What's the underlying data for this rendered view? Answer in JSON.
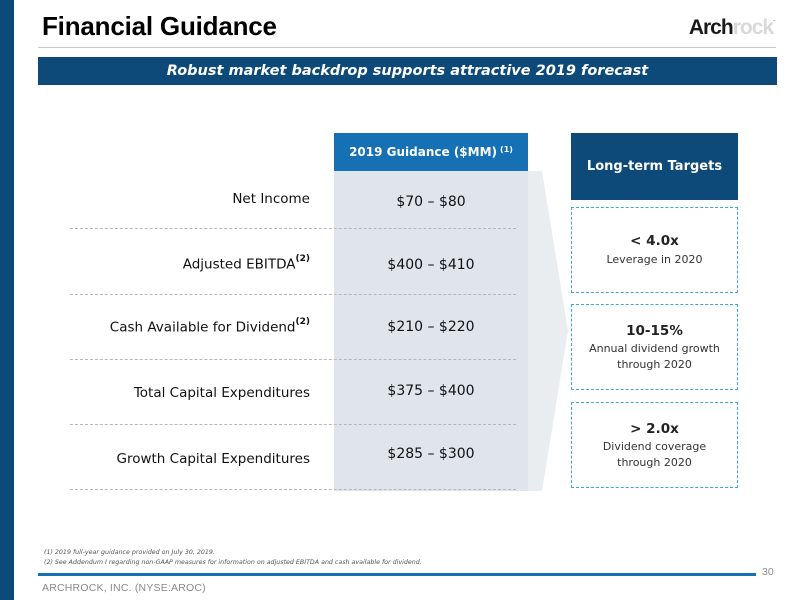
{
  "header": {
    "title": "Financial Guidance",
    "logo_main": "Arch",
    "logo_accent": "rock",
    "logo_mark": "."
  },
  "banner": "Robust market backdrop supports attractive 2019 forecast",
  "guidance": {
    "header": "2019 Guidance ($MM)",
    "header_note": "(1)",
    "rows": [
      {
        "label": "Net Income",
        "note": "",
        "value": "$70 – $80"
      },
      {
        "label": "Adjusted EBITDA",
        "note": "(2)",
        "value": "$400 – $410"
      },
      {
        "label": "Cash Available for Dividend",
        "note": "(2)",
        "value": "$210 – $220"
      },
      {
        "label": "Total Capital Expenditures",
        "note": "",
        "value": "$375 – $400"
      },
      {
        "label": "Growth Capital Expenditures",
        "note": "",
        "value": "$285 – $300"
      }
    ]
  },
  "long_term": {
    "header": "Long-term Targets",
    "targets": [
      {
        "big": "< 4.0x",
        "line1": "Leverage in 2020",
        "line2": ""
      },
      {
        "big": "10-15%",
        "line1": "Annual dividend growth",
        "line2": "through 2020"
      },
      {
        "big": "> 2.0x",
        "line1": "Dividend coverage",
        "line2": "through 2020"
      }
    ]
  },
  "footnotes": [
    "(1) 2019 full-year guidance provided on July 30, 2019.",
    "(2) See Addendum I regarding non-GAAP measures for information on adjusted EBITDA and cash available for dividend."
  ],
  "footer": {
    "company": "ARCHROCK, INC. (NYSE:AROC)",
    "page": "30"
  },
  "colors": {
    "navy": "#0e4a79",
    "blue": "#1570b4",
    "shade": "#dfe5ea",
    "dash_accent": "#3ba9cf"
  }
}
